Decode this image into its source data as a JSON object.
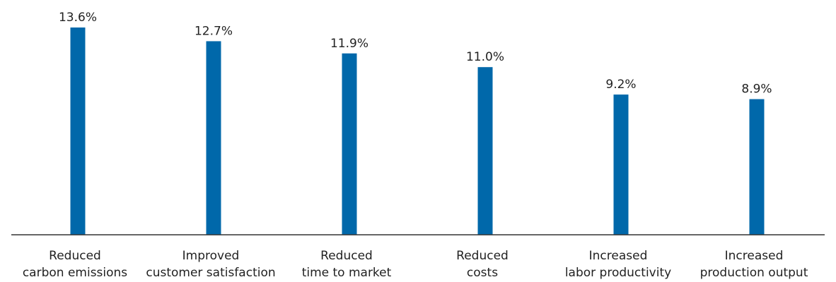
{
  "chart_data": {
    "type": "bar",
    "categories": [
      [
        "Reduced",
        "carbon emissions"
      ],
      [
        "Improved",
        "customer satisfaction"
      ],
      [
        "Reduced",
        "time to market"
      ],
      [
        "Reduced",
        "costs"
      ],
      [
        "Increased",
        "labor productivity"
      ],
      [
        "Increased",
        "production output"
      ]
    ],
    "values": [
      13.6,
      12.7,
      11.9,
      11.0,
      9.2,
      8.9
    ],
    "value_labels": [
      "13.6%",
      "12.7%",
      "11.9%",
      "11.0%",
      "9.2%",
      "8.9%"
    ],
    "ylim": [
      0,
      13.6
    ],
    "grid": false,
    "legend": "none",
    "colors": {
      "bar": "#0068aa",
      "axis": "#333333",
      "text": "#222222"
    }
  }
}
